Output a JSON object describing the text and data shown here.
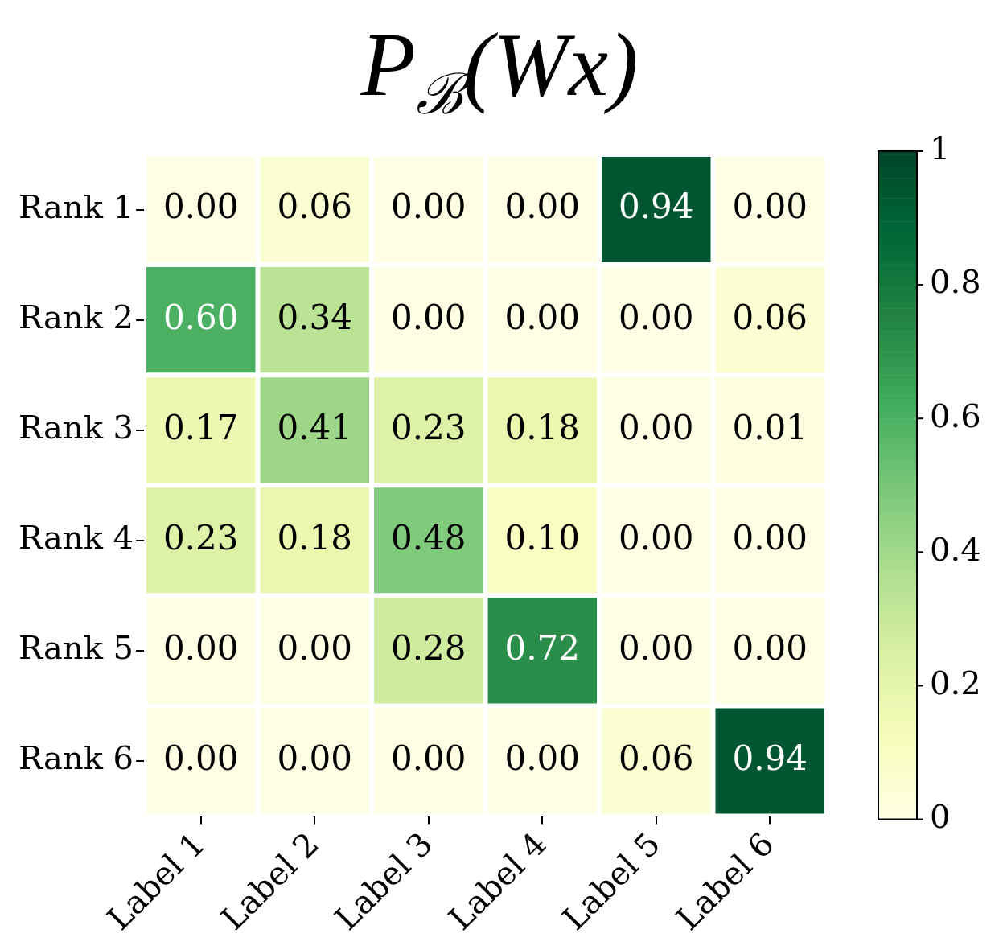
{
  "chart_data": {
    "type": "heatmap",
    "title": "P$_{ℬ}$(Wx)",
    "categories": [
      "Label 1",
      "Label 2",
      "Label 3",
      "Label 4",
      "Label 5",
      "Label 6"
    ],
    "y_categories": [
      "Rank 1",
      "Rank 2",
      "Rank 3",
      "Rank 4",
      "Rank 5",
      "Rank 6"
    ],
    "cells": [
      [
        0,
        0.06,
        0,
        0,
        0.94,
        0
      ],
      [
        0.6,
        0.34,
        0,
        0,
        0,
        0.06
      ],
      [
        0.17,
        0.41,
        0.23,
        0.18,
        0,
        0.01
      ],
      [
        0.23,
        0.18,
        0.48,
        0.1,
        0,
        0
      ],
      [
        0,
        0,
        0.28,
        0.72,
        0,
        0
      ],
      [
        0,
        0,
        0,
        0,
        0.06,
        0.94
      ]
    ],
    "cell_labels": [
      [
        "0.00",
        "0.06",
        "0.00",
        "0.00",
        "0.94",
        "0.00"
      ],
      [
        "0.60",
        "0.34",
        "0.00",
        "0.00",
        "0.00",
        "0.06"
      ],
      [
        "0.17",
        "0.41",
        "0.23",
        "0.18",
        "0.00",
        "0.01"
      ],
      [
        "0.23",
        "0.18",
        "0.48",
        "0.10",
        "0.00",
        "0.00"
      ],
      [
        "0.00",
        "0.00",
        "0.28",
        "0.72",
        "0.00",
        "0.00"
      ],
      [
        "0.00",
        "0.00",
        "0.00",
        "0.00",
        "0.06",
        "0.94"
      ]
    ],
    "clim": [
      0,
      1
    ],
    "cticks": [
      0,
      0.2,
      0.4,
      0.6,
      0.8,
      1
    ]
  }
}
